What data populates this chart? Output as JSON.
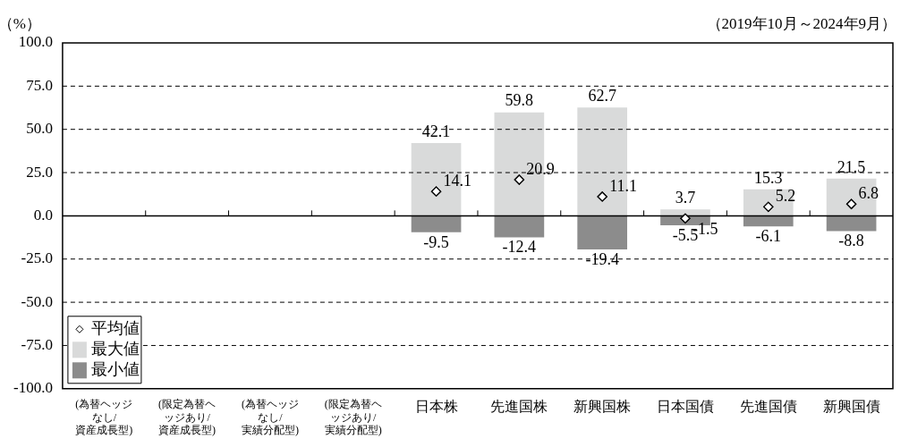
{
  "chart_data": {
    "type": "bar",
    "ylabel": "（%）",
    "annotations": [
      "（2019年10月～2024年9月）"
    ],
    "categories": [
      "(為替ヘッジなし/資産成長型)",
      "(限定為替ヘッジあり/資産成長型)",
      "(為替ヘッジなし/実績分配型)",
      "(限定為替ヘッジあり/実績分配型)",
      "日本株",
      "先進国株",
      "新興国株",
      "日本国債",
      "先進国債",
      "新興国債"
    ],
    "series": [
      {
        "name": "平均値",
        "type": "scatter",
        "marker": "diamond",
        "color": "#ffffff",
        "values": [
          null,
          null,
          null,
          null,
          14.1,
          20.9,
          11.1,
          -1.5,
          5.2,
          6.8
        ]
      },
      {
        "name": "最大値",
        "color": "#d9dada",
        "values": [
          null,
          null,
          null,
          null,
          42.1,
          59.8,
          62.7,
          3.7,
          15.3,
          21.5
        ]
      },
      {
        "name": "最小値",
        "color": "#8c8c8c",
        "values": [
          null,
          null,
          null,
          null,
          -9.5,
          -12.4,
          -19.4,
          -5.5,
          -6.1,
          -8.8
        ]
      }
    ],
    "ylim": [
      -100,
      100
    ],
    "yticks": [
      {
        "value": -100,
        "label": "-100.0"
      },
      {
        "value": -75,
        "label": "-75.0"
      },
      {
        "value": -50,
        "label": "-50.0"
      },
      {
        "value": -25,
        "label": "-25.0"
      },
      {
        "value": 0,
        "label": "0.0"
      },
      {
        "value": 25,
        "label": "25.0"
      },
      {
        "value": 50,
        "label": "50.0"
      },
      {
        "value": 75,
        "label": "75.0"
      },
      {
        "value": 100,
        "label": "100.0"
      }
    ],
    "stacked": true,
    "grid": "y",
    "legend": "bottom left",
    "data_labels": true
  }
}
